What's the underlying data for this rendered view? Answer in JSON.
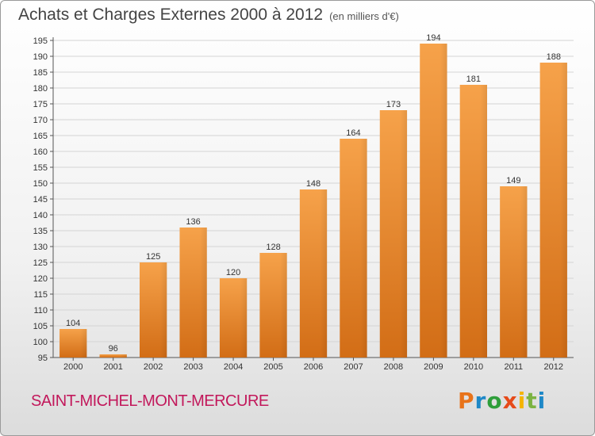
{
  "header": {
    "title": "Achats et Charges Externes 2000 à 2012",
    "unit": "(en milliers d'€)"
  },
  "footer": {
    "commune": "SAINT-MICHEL-MONT-MERCURE",
    "logo_letters": [
      {
        "ch": "P",
        "color": "#e8731a"
      },
      {
        "ch": "r",
        "color": "#1e88c7"
      },
      {
        "ch": "o",
        "color": "#2e9e3a"
      },
      {
        "ch": "x",
        "color": "#e64a19"
      },
      {
        "ch": "i",
        "color": "#f4b400"
      },
      {
        "ch": "t",
        "color": "#7cb342"
      },
      {
        "ch": "i",
        "color": "#1e88c7"
      }
    ]
  },
  "chart_data": {
    "type": "bar",
    "title": "Achats et Charges Externes 2000 à 2012",
    "subtitle": "(en milliers d'€)",
    "categories": [
      "2000",
      "2001",
      "2002",
      "2003",
      "2004",
      "2005",
      "2006",
      "2007",
      "2008",
      "2009",
      "2010",
      "2011",
      "2012"
    ],
    "values": [
      104,
      96,
      125,
      136,
      120,
      128,
      148,
      164,
      173,
      194,
      181,
      149,
      188
    ],
    "ylim": [
      95,
      195
    ],
    "ytick_step": 5,
    "grid": "horizontal",
    "bar_color": "#f08c2e"
  }
}
